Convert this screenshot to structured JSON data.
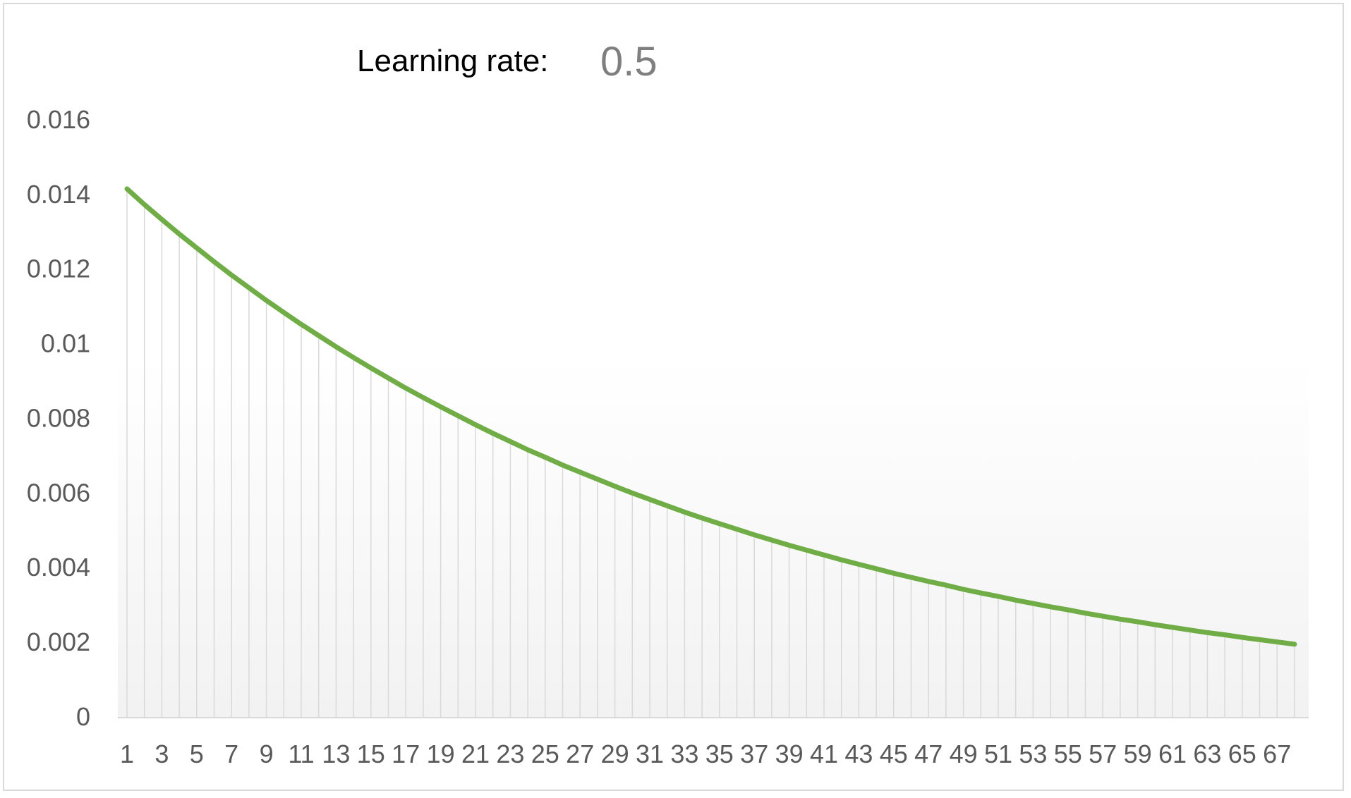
{
  "header": {
    "label": "Learning rate:",
    "value": "0.5"
  },
  "colors": {
    "line": "#70ad47",
    "drop_lines": "#d9d9d9",
    "axis_text": "#595959",
    "value_text": "#7f7f7f",
    "gradient_top": "#ffffff",
    "gradient_bottom": "#f2f2f2"
  },
  "chart_data": {
    "type": "line",
    "title": "Learning rate:",
    "xlabel": "",
    "ylabel": "",
    "ylim": [
      0,
      0.016
    ],
    "yticks": [
      0,
      0.002,
      0.004,
      0.006,
      0.008,
      0.01,
      0.012,
      0.014,
      0.016
    ],
    "ytick_labels": [
      "0",
      "0.002",
      "0.004",
      "0.006",
      "0.008",
      "0.01",
      "0.012",
      "0.014",
      "0.016"
    ],
    "xtick_labels": [
      "1",
      "3",
      "5",
      "7",
      "9",
      "11",
      "13",
      "15",
      "17",
      "19",
      "21",
      "23",
      "25",
      "27",
      "29",
      "31",
      "33",
      "35",
      "37",
      "39",
      "41",
      "43",
      "45",
      "47",
      "49",
      "51",
      "53",
      "55",
      "57",
      "59",
      "61",
      "63",
      "65",
      "67"
    ],
    "grid": false,
    "drop_lines": true,
    "legend": "none",
    "x": [
      1,
      2,
      3,
      4,
      5,
      6,
      7,
      8,
      9,
      10,
      11,
      12,
      13,
      14,
      15,
      16,
      17,
      18,
      19,
      20,
      21,
      22,
      23,
      24,
      25,
      26,
      27,
      28,
      29,
      30,
      31,
      32,
      33,
      34,
      35,
      36,
      37,
      38,
      39,
      40,
      41,
      42,
      43,
      44,
      45,
      46,
      47,
      48,
      49,
      50,
      51,
      52,
      53,
      54,
      55,
      56,
      57,
      58,
      59,
      60,
      61,
      62,
      63,
      64,
      65,
      66,
      67,
      68
    ],
    "series": [
      {
        "values": [
          0.01415,
          0.01373,
          0.01333,
          0.01294,
          0.01257,
          0.0122,
          0.01184,
          0.0115,
          0.01116,
          0.01084,
          0.01052,
          0.01022,
          0.00992,
          0.00963,
          0.00935,
          0.00908,
          0.00881,
          0.00856,
          0.00831,
          0.00807,
          0.00783,
          0.0076,
          0.00738,
          0.00716,
          0.00696,
          0.00675,
          0.00656,
          0.00637,
          0.00618,
          0.006,
          0.00583,
          0.00566,
          0.00549,
          0.00533,
          0.00518,
          0.00503,
          0.00488,
          0.00474,
          0.0046,
          0.00447,
          0.00434,
          0.00421,
          0.00409,
          0.00397,
          0.00385,
          0.00374,
          0.00363,
          0.00353,
          0.00342,
          0.00332,
          0.00323,
          0.00313,
          0.00304,
          0.00295,
          0.00287,
          0.00278,
          0.0027,
          0.00262,
          0.00255,
          0.00247,
          0.0024,
          0.00233,
          0.00226,
          0.0022,
          0.00213,
          0.00207,
          0.00201,
          0.00195
        ]
      }
    ]
  }
}
